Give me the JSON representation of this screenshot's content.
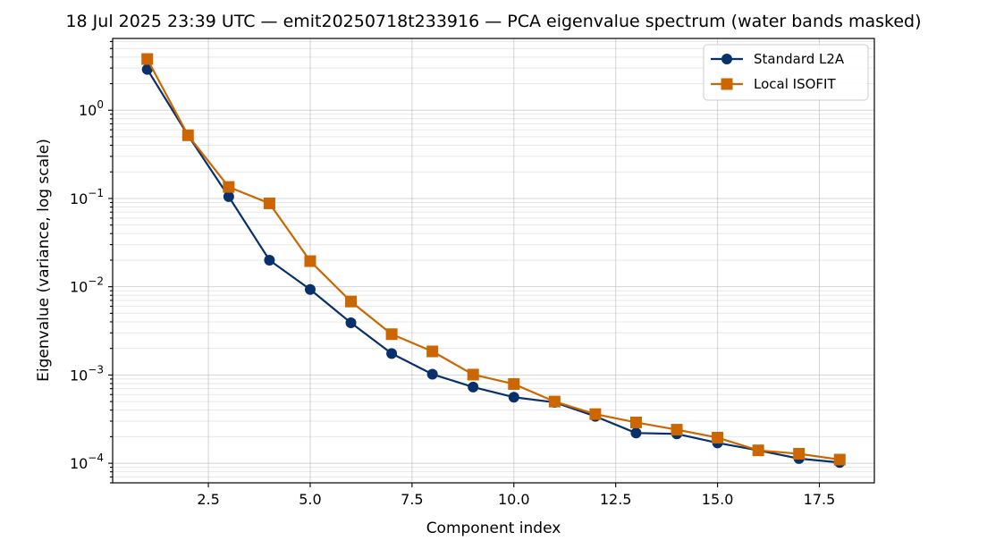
{
  "chart_data": {
    "type": "line",
    "title": "18 Jul 2025 23:39 UTC — emit20250718t233916 — PCA eigenvalue spectrum (water bands masked)",
    "xlabel": "Component index",
    "ylabel": "Eigenvalue (variance, log scale)",
    "xlim": [
      0.15,
      18.85
    ],
    "ylim": [
      6e-05,
      6.5
    ],
    "yscale": "log",
    "x_ticks": [
      2.5,
      5.0,
      7.5,
      10.0,
      12.5,
      15.0,
      17.5
    ],
    "x_tick_labels": [
      "2.5",
      "5.0",
      "7.5",
      "10.0",
      "12.5",
      "15.0",
      "17.5"
    ],
    "y_ticks": [
      0.0001,
      0.001,
      0.01,
      0.1,
      1
    ],
    "y_tick_labels": [
      {
        "base": "10",
        "exp": "−4"
      },
      {
        "base": "10",
        "exp": "−3"
      },
      {
        "base": "10",
        "exp": "−2"
      },
      {
        "base": "10",
        "exp": "−1"
      },
      {
        "base": "10",
        "exp": "0"
      }
    ],
    "grid": true,
    "legend_position": "top-right",
    "x": [
      1,
      2,
      3,
      4,
      5,
      6,
      7,
      8,
      9,
      10,
      11,
      12,
      13,
      14,
      15,
      16,
      17,
      18
    ],
    "series": [
      {
        "name": "Standard L2A",
        "color": "#08306b",
        "marker": "circle",
        "values": [
          2.9,
          0.52,
          0.105,
          0.02,
          0.0093,
          0.0039,
          0.00175,
          0.00102,
          0.00073,
          0.00056,
          0.00049,
          0.00034,
          0.00022,
          0.000215,
          0.00017,
          0.00014,
          0.000113,
          0.000102
        ]
      },
      {
        "name": "Local ISOFIT",
        "color": "#cc6600",
        "marker": "square",
        "values": [
          3.8,
          0.52,
          0.135,
          0.088,
          0.0195,
          0.0068,
          0.0029,
          0.00185,
          0.00101,
          0.00079,
          0.0005,
          0.00036,
          0.00029,
          0.00024,
          0.000195,
          0.00014,
          0.000128,
          0.00011
        ]
      }
    ]
  }
}
